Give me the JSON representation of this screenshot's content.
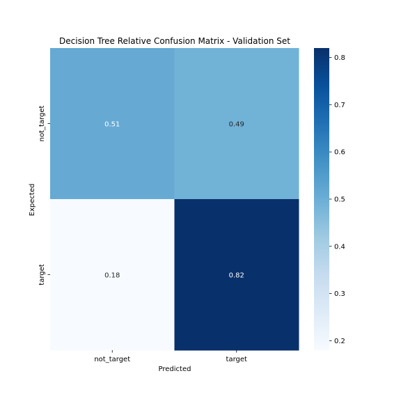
{
  "chart_data": {
    "type": "heatmap",
    "title": "Decision Tree Relative Confusion Matrix - Validation Set",
    "xlabel": "Predicted",
    "ylabel": "Expected",
    "x_categories": [
      "not_target",
      "target"
    ],
    "y_categories": [
      "not_target",
      "target"
    ],
    "values": [
      [
        0.51,
        0.49
      ],
      [
        0.18,
        0.82
      ]
    ],
    "cell_labels": [
      [
        "0.51",
        "0.49"
      ],
      [
        "0.18",
        "0.82"
      ]
    ],
    "colorbar": {
      "colormap": "Blues",
      "range": [
        0.18,
        0.82
      ],
      "ticks": [
        0.2,
        0.3,
        0.4,
        0.5,
        0.6,
        0.7,
        0.8
      ],
      "tick_labels": [
        "0.2",
        "0.3",
        "0.4",
        "0.5",
        "0.6",
        "0.7",
        "0.8"
      ]
    }
  }
}
